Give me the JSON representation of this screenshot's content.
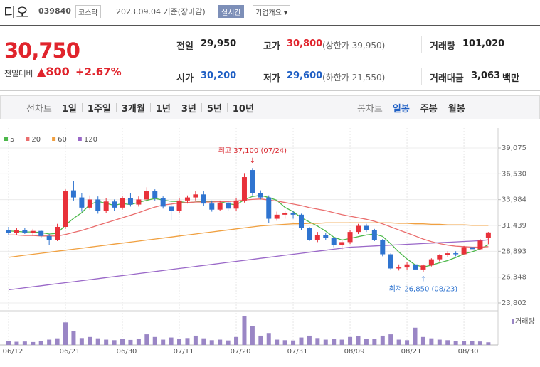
{
  "header": {
    "name": "디오",
    "code": "039840",
    "market": "코스닥",
    "date": "2023.09.04 기준(장마감)",
    "realtime": "실시간",
    "company": "기업개요 ▾"
  },
  "quote": {
    "price": "30,750",
    "change_label": "전일대비",
    "change": "▲800",
    "change_rate": "+2.67%"
  },
  "info": [
    [
      {
        "label": "전일",
        "value": "29,950"
      },
      {
        "label": "고가",
        "value": "30,800",
        "note": "(상한가 39,950)"
      },
      {
        "label": "거래량",
        "value": "101,020"
      }
    ],
    [
      {
        "label": "시가",
        "value": "30,200"
      },
      {
        "label": "저가",
        "value": "29,600",
        "note": "(하한가 21,550)"
      },
      {
        "label": "거래대금",
        "value": "3,063",
        "unit": "백만"
      }
    ]
  ],
  "toolbar": {
    "line_label": "선차트",
    "line_periods": [
      "1일",
      "1주일",
      "3개월",
      "1년",
      "3년",
      "5년",
      "10년"
    ],
    "candle_label": "봉차트",
    "candle_periods": [
      "일봉",
      "주봉",
      "월봉"
    ],
    "selected": "일봉"
  },
  "chart_data": {
    "type": "candlestick",
    "grid": true,
    "up_color": "#e8313a",
    "down_color": "#2f74d0",
    "volume_color": "#9a86c5",
    "volume_name": "거래량",
    "categories": [
      "06/12",
      null,
      null,
      null,
      null,
      null,
      null,
      "06/21",
      null,
      null,
      null,
      null,
      null,
      null,
      "06/30",
      null,
      null,
      null,
      null,
      null,
      null,
      "07/11",
      null,
      null,
      null,
      null,
      null,
      null,
      "07/20",
      null,
      null,
      null,
      null,
      null,
      null,
      "07/31",
      null,
      null,
      null,
      null,
      null,
      null,
      "08/09",
      null,
      null,
      null,
      null,
      null,
      null,
      "08/21",
      null,
      null,
      null,
      null,
      null,
      null,
      "08/30",
      null,
      null,
      null
    ],
    "open": [
      31000,
      30700,
      31000,
      30700,
      30900,
      30400,
      30000,
      31300,
      34900,
      34200,
      33200,
      34000,
      32900,
      33800,
      33200,
      34100,
      33500,
      34000,
      34800,
      34100,
      33300,
      32900,
      33900,
      34200,
      34500,
      33600,
      33000,
      33700,
      33100,
      33900,
      36900,
      34600,
      34200,
      32100,
      32500,
      32700,
      32500,
      31200,
      30000,
      30500,
      30200,
      29500,
      29800,
      30800,
      31400,
      31000,
      30000,
      28600,
      27200,
      27300,
      27600,
      27100,
      27500,
      28100,
      28500,
      28700,
      28600,
      29300,
      29100,
      30200
    ],
    "high": [
      31300,
      31200,
      31200,
      31100,
      31000,
      30600,
      31600,
      35000,
      35800,
      34600,
      34400,
      34300,
      34100,
      34000,
      34300,
      34600,
      34300,
      35200,
      35000,
      34300,
      33600,
      34100,
      34400,
      34800,
      34800,
      33900,
      33900,
      33800,
      34100,
      36600,
      37100,
      34900,
      34400,
      32800,
      32900,
      32900,
      32600,
      31300,
      30800,
      30700,
      30300,
      30000,
      31000,
      31600,
      31600,
      31100,
      30100,
      28700,
      27600,
      27800,
      29500,
      27600,
      28200,
      28600,
      28900,
      28900,
      29400,
      29500,
      30100,
      30800
    ],
    "low": [
      30500,
      30500,
      30600,
      30400,
      30200,
      29500,
      29900,
      31100,
      33900,
      32800,
      33000,
      32600,
      32700,
      32900,
      33000,
      33300,
      33300,
      33800,
      33900,
      33100,
      32000,
      32700,
      33600,
      33900,
      33400,
      32800,
      32900,
      32900,
      32900,
      33700,
      34400,
      34000,
      31700,
      31900,
      32100,
      32100,
      31000,
      29900,
      29800,
      30000,
      29300,
      29000,
      29600,
      30600,
      30800,
      29900,
      28400,
      27100,
      27000,
      27100,
      27000,
      26850,
      27400,
      27900,
      28300,
      28400,
      28500,
      29000,
      29000,
      29600
    ],
    "close": [
      30700,
      31000,
      30700,
      30900,
      30400,
      30000,
      31300,
      34800,
      34200,
      33200,
      34000,
      32900,
      33800,
      33200,
      34100,
      33500,
      34000,
      34800,
      34100,
      33300,
      32900,
      33900,
      34200,
      34500,
      33600,
      33000,
      33700,
      33100,
      33900,
      36200,
      34600,
      34200,
      32100,
      32500,
      32700,
      32500,
      31200,
      30000,
      30500,
      30200,
      29500,
      29800,
      30800,
      31400,
      31000,
      30000,
      28600,
      27200,
      27300,
      27600,
      27100,
      27500,
      28100,
      28500,
      28700,
      28600,
      29300,
      29100,
      29950,
      30750
    ],
    "volume": [
      150000,
      120000,
      130000,
      110000,
      140000,
      200000,
      250000,
      850000,
      520000,
      260000,
      300000,
      250000,
      200000,
      180000,
      220000,
      190000,
      230000,
      400000,
      300000,
      200000,
      280000,
      220000,
      260000,
      350000,
      250000,
      180000,
      200000,
      170000,
      300000,
      1100000,
      700000,
      350000,
      450000,
      200000,
      180000,
      170000,
      280000,
      350000,
      260000,
      200000,
      220000,
      200000,
      300000,
      330000,
      240000,
      220000,
      350000,
      400000,
      200000,
      180000,
      650000,
      300000,
      250000,
      200000,
      180000,
      150000,
      160000,
      140000,
      130000,
      101020
    ],
    "series": [
      {
        "name": "5",
        "color": "#4cb84a",
        "values": [
          30900,
          30850,
          30800,
          30800,
          30740,
          30600,
          30660,
          31480,
          32140,
          32700,
          33500,
          33820,
          33620,
          33420,
          33600,
          33500,
          33720,
          33920,
          34100,
          33940,
          33820,
          33800,
          33680,
          33760,
          33820,
          33840,
          33800,
          33580,
          33460,
          33980,
          34300,
          34400,
          34200,
          33920,
          33220,
          32800,
          32200,
          31780,
          31380,
          30880,
          30280,
          30000,
          30160,
          30340,
          30500,
          30600,
          30360,
          29640,
          28820,
          28140,
          27560,
          27340,
          27520,
          27760,
          27980,
          28280,
          28640,
          28840,
          29130,
          29540
        ]
      },
      {
        "name": "20",
        "color": "#ea6d6d",
        "values": [
          30500,
          30500,
          30450,
          30450,
          30400,
          30400,
          30400,
          30550,
          30750,
          30950,
          31200,
          31450,
          31700,
          31950,
          32200,
          32450,
          32700,
          33000,
          33250,
          33450,
          33550,
          33650,
          33700,
          33750,
          33750,
          33750,
          33800,
          33800,
          33850,
          33950,
          34000,
          34050,
          33950,
          33850,
          33700,
          33550,
          33400,
          33200,
          33050,
          32900,
          32700,
          32500,
          32350,
          32200,
          32050,
          31850,
          31600,
          31300,
          31000,
          30700,
          30400,
          30100,
          29850,
          29650,
          29500,
          29400,
          29350,
          29300,
          29300,
          29350
        ]
      },
      {
        "name": "60",
        "color": "#f0a040",
        "values": [
          28300,
          28400,
          28500,
          28600,
          28700,
          28800,
          28900,
          29000,
          29100,
          29200,
          29300,
          29400,
          29500,
          29600,
          29700,
          29800,
          29900,
          30000,
          30100,
          30200,
          30300,
          30400,
          30500,
          30600,
          30700,
          30800,
          30900,
          31000,
          31100,
          31200,
          31300,
          31400,
          31450,
          31500,
          31550,
          31600,
          31600,
          31650,
          31650,
          31700,
          31700,
          31700,
          31700,
          31700,
          31700,
          31700,
          31700,
          31700,
          31650,
          31650,
          31600,
          31600,
          31550,
          31550,
          31500,
          31500,
          31500,
          31450,
          31450,
          31450
        ]
      },
      {
        "name": "120",
        "color": "#9a68c8",
        "values": [
          25100,
          25200,
          25300,
          25400,
          25500,
          25600,
          25700,
          25800,
          25900,
          26000,
          26100,
          26200,
          26300,
          26400,
          26500,
          26600,
          26700,
          26800,
          26900,
          27000,
          27100,
          27200,
          27300,
          27400,
          27500,
          27600,
          27700,
          27800,
          27900,
          28000,
          28100,
          28200,
          28300,
          28400,
          28500,
          28600,
          28700,
          28800,
          28900,
          29000,
          29100,
          29200,
          29300,
          29340,
          29380,
          29420,
          29460,
          29500,
          29540,
          29580,
          29620,
          29660,
          29700,
          29740,
          29780,
          29820,
          29860,
          29900,
          29940,
          30020
        ]
      }
    ],
    "ylim": [
      23200,
      40700
    ],
    "yticks": [
      {
        "value": 23802,
        "label": "23,802"
      },
      {
        "value": 26348,
        "label": "26,348"
      },
      {
        "value": 28893,
        "label": "28,893"
      },
      {
        "value": 31439,
        "label": "31,439"
      },
      {
        "value": 33984,
        "label": "33,984"
      },
      {
        "value": 36530,
        "label": "36,530"
      },
      {
        "value": 39075,
        "label": "39,075"
      }
    ],
    "annotations": [
      {
        "text": "최고 37,100 (07/24)",
        "arrow": "↓",
        "color": "#d9262e"
      },
      {
        "text": "최저 26,850 (08/23)",
        "arrow": "↑",
        "color": "#2f74d0"
      }
    ]
  }
}
